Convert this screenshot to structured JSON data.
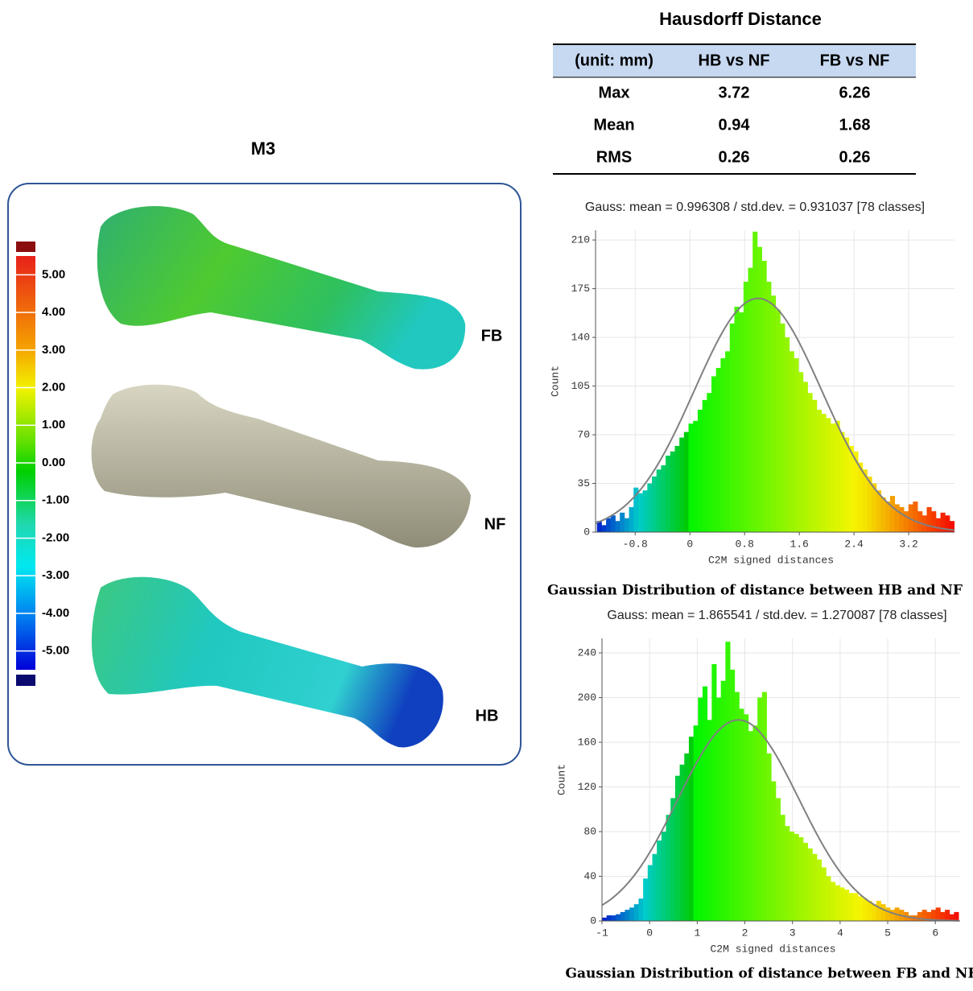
{
  "panel": {
    "title": "M3",
    "colorbar": {
      "lim": [
        -5.5,
        5.5
      ],
      "ticks": [
        {
          "value": 5,
          "label": "5.00"
        },
        {
          "value": 4,
          "label": "4.00"
        },
        {
          "value": 3,
          "label": "3.00"
        },
        {
          "value": 2,
          "label": "2.00"
        },
        {
          "value": 1,
          "label": "1.00"
        },
        {
          "value": 0,
          "label": "0.00"
        },
        {
          "value": -1,
          "label": "-1.00"
        },
        {
          "value": -2,
          "label": "-2.00"
        },
        {
          "value": -3,
          "label": "-3.00"
        },
        {
          "value": -4,
          "label": "-4.00"
        },
        {
          "value": -5,
          "label": "-5.00"
        }
      ]
    },
    "labels": [
      "FB",
      "NF",
      "HB"
    ]
  },
  "table": {
    "title": "Hausdorff Distance",
    "header": [
      "(unit: mm)",
      "HB vs NF",
      "FB vs NF"
    ],
    "rows": [
      [
        "Max",
        3.72,
        6.26
      ],
      [
        "Mean",
        0.94,
        1.68
      ],
      [
        "RMS",
        0.26,
        0.26
      ]
    ]
  },
  "chart_data": [
    {
      "type": "histogram",
      "subtitle": "Gauss: mean = 0.996308 / std.dev. = 0.931037 [78 classes]",
      "caption": "Gaussian Distribution of distance between HB and NF",
      "x_label": "C2M signed distances",
      "y_label": "Count",
      "grid": true,
      "bins": [
        -1.36,
        -1.293,
        -1.226,
        -1.159,
        -1.092,
        -1.025,
        -0.958,
        -0.891,
        -0.824,
        -0.757,
        -0.69,
        -0.623,
        -0.556,
        -0.489,
        -0.422,
        -0.355,
        -0.288,
        -0.221,
        -0.154,
        -0.087,
        -0.02,
        0.047,
        0.114,
        0.181,
        0.248,
        0.315,
        0.382,
        0.449,
        0.516,
        0.583,
        0.65,
        0.717,
        0.784,
        0.851,
        0.918,
        0.985,
        1.052,
        1.119,
        1.186,
        1.253,
        1.32,
        1.387,
        1.454,
        1.521,
        1.588,
        1.655,
        1.722,
        1.789,
        1.856,
        1.923,
        1.99,
        2.057,
        2.124,
        2.191,
        2.258,
        2.325,
        2.392,
        2.459,
        2.526,
        2.593,
        2.66,
        2.727,
        2.794,
        2.861,
        2.928,
        2.995,
        3.062,
        3.129,
        3.196,
        3.263,
        3.33,
        3.397,
        3.464,
        3.531,
        3.598,
        3.665,
        3.732,
        3.799,
        3.866
      ],
      "values": [
        8,
        5,
        10,
        12,
        8,
        14,
        10,
        18,
        32,
        28,
        30,
        35,
        40,
        45,
        48,
        55,
        58,
        62,
        68,
        72,
        78,
        80,
        88,
        95,
        100,
        112,
        118,
        125,
        130,
        150,
        162,
        158,
        180,
        190,
        216,
        205,
        195,
        180,
        170,
        160,
        150,
        140,
        130,
        125,
        115,
        108,
        100,
        95,
        88,
        85,
        82,
        78,
        80,
        72,
        68,
        62,
        58,
        50,
        45,
        40,
        35,
        30,
        25,
        22,
        26,
        20,
        18,
        15,
        20,
        22,
        15,
        12,
        18,
        15,
        10,
        14,
        12,
        8
      ],
      "xlim": [
        -1.38,
        3.87
      ],
      "ylim": [
        0,
        217
      ],
      "xticks": [
        -0.8,
        0,
        0.8,
        1.6,
        2.4,
        3.2
      ],
      "yticks": [
        0,
        35,
        70,
        105,
        140,
        175,
        210
      ],
      "fit": {
        "mean": 0.996308,
        "std_dev": 0.931037,
        "peak": 168
      }
    },
    {
      "type": "histogram",
      "subtitle": "Gauss: mean = 1.865541 / std.dev. = 1.270087 [78 classes]",
      "caption": "Gaussian Distribution of distance between FB and NF",
      "x_label": "C2M signed distances",
      "y_label": "Count",
      "grid": true,
      "bins": [
        -1,
        -0.904,
        -0.808,
        -0.712,
        -0.616,
        -0.52,
        -0.424,
        -0.328,
        -0.232,
        -0.136,
        -0.04,
        0.056,
        0.152,
        0.248,
        0.344,
        0.44,
        0.536,
        0.632,
        0.728,
        0.824,
        0.92,
        1.016,
        1.112,
        1.208,
        1.304,
        1.4,
        1.496,
        1.592,
        1.688,
        1.784,
        1.88,
        1.976,
        2.072,
        2.168,
        2.264,
        2.36,
        2.456,
        2.552,
        2.648,
        2.744,
        2.84,
        2.936,
        3.032,
        3.128,
        3.224,
        3.32,
        3.416,
        3.512,
        3.608,
        3.704,
        3.8,
        3.896,
        3.992,
        4.088,
        4.184,
        4.28,
        4.376,
        4.472,
        4.568,
        4.664,
        4.76,
        4.856,
        4.952,
        5.048,
        5.144,
        5.24,
        5.336,
        5.432,
        5.528,
        5.624,
        5.72,
        5.816,
        5.912,
        6.008,
        6.104,
        6.2,
        6.296,
        6.392,
        6.488
      ],
      "values": [
        3,
        5,
        5,
        6,
        8,
        10,
        12,
        15,
        20,
        38,
        50,
        60,
        72,
        80,
        95,
        110,
        130,
        140,
        150,
        165,
        175,
        200,
        210,
        180,
        230,
        200,
        215,
        250,
        225,
        205,
        190,
        185,
        170,
        175,
        200,
        205,
        150,
        125,
        110,
        95,
        85,
        80,
        78,
        75,
        70,
        65,
        60,
        55,
        48,
        40,
        35,
        32,
        30,
        28,
        25,
        25,
        22,
        20,
        18,
        15,
        18,
        15,
        12,
        10,
        12,
        10,
        8,
        5,
        5,
        8,
        10,
        8,
        10,
        12,
        8,
        10,
        6,
        8
      ],
      "xlim": [
        -1,
        6.52
      ],
      "ylim": [
        0,
        253
      ],
      "xticks": [
        -1,
        0,
        1,
        2,
        3,
        4,
        5,
        6
      ],
      "yticks": [
        0,
        40,
        80,
        120,
        160,
        200,
        240
      ],
      "fit": {
        "mean": 1.865541,
        "std_dev": 1.270087,
        "peak": 180
      }
    }
  ]
}
